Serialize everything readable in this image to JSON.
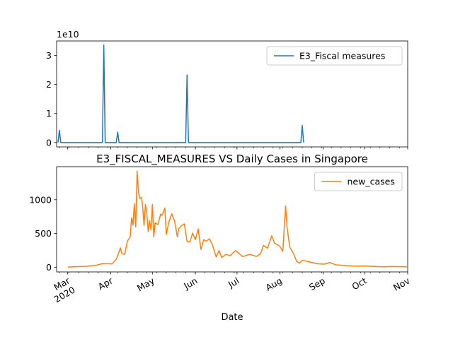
{
  "chart_data": [
    {
      "type": "line",
      "title": "",
      "xlabel": "",
      "ylabel": "",
      "y_multiplier_label": "1e10",
      "ylim": [
        -0.15,
        3.5
      ],
      "yticks": [
        0,
        1,
        2,
        3
      ],
      "legend_placement": "top-right",
      "grid": false,
      "color": "#1f77b4",
      "series": [
        {
          "name": "E3_Fiscal measures",
          "points": [
            [
              "2020-02-23",
              0
            ],
            [
              "2020-02-24",
              0.42
            ],
            [
              "2020-02-25",
              0
            ],
            [
              "2020-03-26",
              0
            ],
            [
              "2020-03-27",
              3.36
            ],
            [
              "2020-03-28",
              0
            ],
            [
              "2020-04-05",
              0
            ],
            [
              "2020-04-06",
              0.36
            ],
            [
              "2020-04-07",
              0
            ],
            [
              "2020-05-25",
              0
            ],
            [
              "2020-05-26",
              2.33
            ],
            [
              "2020-05-27",
              0
            ],
            [
              "2020-08-16",
              0
            ],
            [
              "2020-08-17",
              0.59
            ],
            [
              "2020-08-18",
              0
            ]
          ]
        }
      ]
    },
    {
      "type": "line",
      "title": "E3_FISCAL_MEASURES VS Daily Cases in Singapore",
      "xlabel": "Date",
      "ylabel": "",
      "ylim": [
        -70,
        1490
      ],
      "yticks": [
        0,
        500,
        1000
      ],
      "legend_placement": "top-right",
      "grid": false,
      "color": "#ff7f0e",
      "series": [
        {
          "name": "new_cases",
          "points": [
            [
              "2020-03-01",
              2
            ],
            [
              "2020-03-15",
              14
            ],
            [
              "2020-03-22",
              31
            ],
            [
              "2020-03-26",
              52
            ],
            [
              "2020-04-02",
              49
            ],
            [
              "2020-04-05",
              120
            ],
            [
              "2020-04-08",
              287
            ],
            [
              "2020-04-09",
              200
            ],
            [
              "2020-04-11",
              191
            ],
            [
              "2020-04-13",
              386
            ],
            [
              "2020-04-15",
              447
            ],
            [
              "2020-04-16",
              728
            ],
            [
              "2020-04-17",
              623
            ],
            [
              "2020-04-18",
              942
            ],
            [
              "2020-04-19",
              596
            ],
            [
              "2020-04-20",
              1426
            ],
            [
              "2020-04-21",
              1111
            ],
            [
              "2020-04-22",
              1016
            ],
            [
              "2020-04-23",
              1037
            ],
            [
              "2020-04-24",
              897
            ],
            [
              "2020-04-25",
              618
            ],
            [
              "2020-04-26",
              931
            ],
            [
              "2020-04-27",
              799
            ],
            [
              "2020-04-28",
              528
            ],
            [
              "2020-04-29",
              690
            ],
            [
              "2020-04-30",
              552
            ],
            [
              "2020-05-01",
              932
            ],
            [
              "2020-05-02",
              447
            ],
            [
              "2020-05-03",
              657
            ],
            [
              "2020-05-05",
              632
            ],
            [
              "2020-05-07",
              788
            ],
            [
              "2020-05-08",
              768
            ],
            [
              "2020-05-10",
              876
            ],
            [
              "2020-05-11",
              486
            ],
            [
              "2020-05-13",
              675
            ],
            [
              "2020-05-15",
              793
            ],
            [
              "2020-05-17",
              682
            ],
            [
              "2020-05-19",
              451
            ],
            [
              "2020-05-20",
              570
            ],
            [
              "2020-05-22",
              614
            ],
            [
              "2020-05-24",
              642
            ],
            [
              "2020-05-26",
              383
            ],
            [
              "2020-05-28",
              373
            ],
            [
              "2020-05-30",
              506
            ],
            [
              "2020-06-01",
              408
            ],
            [
              "2020-06-03",
              569
            ],
            [
              "2020-06-05",
              261
            ],
            [
              "2020-06-07",
              407
            ],
            [
              "2020-06-09",
              386
            ],
            [
              "2020-06-11",
              422
            ],
            [
              "2020-06-13",
              347
            ],
            [
              "2020-06-16",
              151
            ],
            [
              "2020-06-18",
              247
            ],
            [
              "2020-06-20",
              142
            ],
            [
              "2020-06-23",
              191
            ],
            [
              "2020-06-26",
              170
            ],
            [
              "2020-06-30",
              246
            ],
            [
              "2020-07-05",
              157
            ],
            [
              "2020-07-10",
              190
            ],
            [
              "2020-07-15",
              160
            ],
            [
              "2020-07-18",
              199
            ],
            [
              "2020-07-20",
              322
            ],
            [
              "2020-07-23",
              282
            ],
            [
              "2020-07-26",
              465
            ],
            [
              "2020-07-28",
              359
            ],
            [
              "2020-08-01",
              307
            ],
            [
              "2020-08-03",
              233
            ],
            [
              "2020-08-05",
              908
            ],
            [
              "2020-08-06",
              600
            ],
            [
              "2020-08-08",
              300
            ],
            [
              "2020-08-11",
              188
            ],
            [
              "2020-08-13",
              85
            ],
            [
              "2020-08-15",
              60
            ],
            [
              "2020-08-17",
              100
            ],
            [
              "2020-08-20",
              90
            ],
            [
              "2020-08-24",
              70
            ],
            [
              "2020-08-28",
              50
            ],
            [
              "2020-09-02",
              45
            ],
            [
              "2020-09-06",
              70
            ],
            [
              "2020-09-10",
              35
            ],
            [
              "2020-09-15",
              28
            ],
            [
              "2020-09-20",
              20
            ],
            [
              "2020-09-25",
              15
            ],
            [
              "2020-10-01",
              18
            ],
            [
              "2020-10-05",
              14
            ],
            [
              "2020-10-10",
              9
            ],
            [
              "2020-10-15",
              5
            ],
            [
              "2020-10-20",
              10
            ],
            [
              "2020-10-25",
              8
            ],
            [
              "2020-11-01",
              5
            ]
          ]
        }
      ]
    }
  ],
  "x_axis": {
    "range": [
      "2020-02-22",
      "2020-11-01"
    ],
    "major_ticks": [
      {
        "date": "2020-03-01",
        "label": "Mar\n2020"
      },
      {
        "date": "2020-04-01",
        "label": "Apr"
      },
      {
        "date": "2020-05-01",
        "label": "May"
      },
      {
        "date": "2020-06-01",
        "label": "Jun"
      },
      {
        "date": "2020-07-01",
        "label": "Jul"
      },
      {
        "date": "2020-08-01",
        "label": "Aug"
      },
      {
        "date": "2020-09-01",
        "label": "Sep"
      },
      {
        "date": "2020-10-01",
        "label": "Oct"
      },
      {
        "date": "2020-11-01",
        "label": "Nov"
      }
    ]
  }
}
